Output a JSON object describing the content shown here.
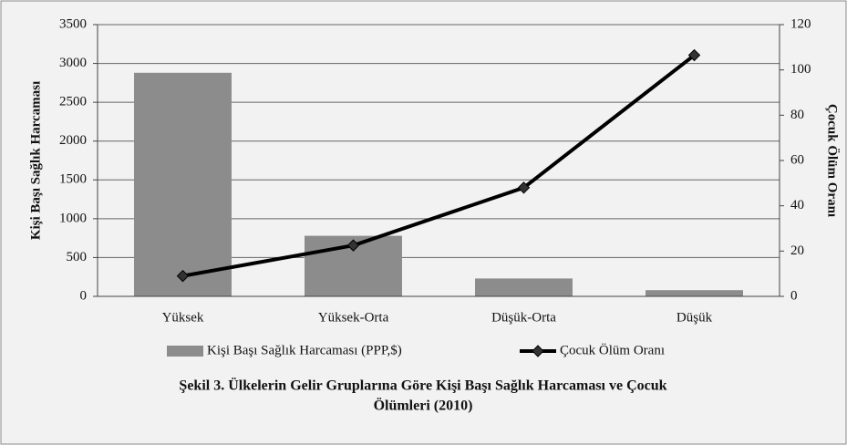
{
  "chart_data": {
    "type": "bar_line",
    "title_lines": [
      "Şekil 3. Ülkelerin Gelir Gruplarına Göre Kişi Başı Sağlık Harcaması ve Çocuk",
      "Ölümleri (2010)"
    ],
    "ylabel": "Kişi Başı Sağlık Harcaması",
    "y2label": "Çocuk Ölüm Oranı",
    "categories": [
      "Yüksek",
      "Yüksek-Orta",
      "Düşük-Orta",
      "Düşük"
    ],
    "series": [
      {
        "name": "Kişi Başı Sağlık Harcaması (PPP,$)",
        "type": "bar",
        "color": "#8c8c8c",
        "values": [
          2880,
          780,
          230,
          80
        ]
      },
      {
        "name": "Çocuk Ölüm Oranı",
        "type": "line",
        "color": "#000000",
        "axis": "y2",
        "values": [
          9,
          22.5,
          48,
          106.5
        ]
      }
    ],
    "ylim": [
      0,
      3500
    ],
    "yticks": [
      0,
      500,
      1000,
      1500,
      2000,
      2500,
      3000,
      3500
    ],
    "y2lim": [
      0,
      120
    ],
    "y2ticks": [
      0,
      20,
      40,
      60,
      80,
      100,
      120
    ],
    "grid": true
  }
}
